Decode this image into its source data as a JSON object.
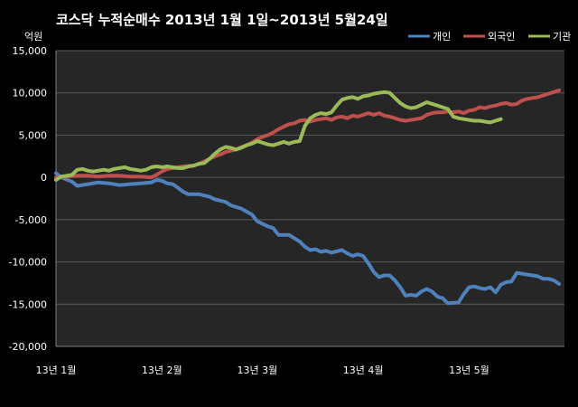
{
  "chart_data": {
    "type": "line",
    "title": "코스닥 누적순매수 2013년 1월 1일~2013년 5월24일",
    "unit_label": "억원",
    "ylim": [
      -20000,
      15000
    ],
    "yticks": [
      -20000,
      -15000,
      -10000,
      -5000,
      0,
      5000,
      10000,
      15000
    ],
    "ytick_labels": [
      "-20,000",
      "-15,000",
      "-10,000",
      "-5,000",
      "0",
      "5,000",
      "10,000",
      "15,000"
    ],
    "xlim": [
      0,
      96
    ],
    "xticks": [
      {
        "x": 0,
        "label": "13년 1월"
      },
      {
        "x": 20,
        "label": "13년 2월"
      },
      {
        "x": 38,
        "label": "13년 3월"
      },
      {
        "x": 58,
        "label": "13년 4월"
      },
      {
        "x": 78,
        "label": "13년 5월"
      }
    ],
    "grid": true,
    "legend_position": "top-right",
    "series": [
      {
        "name": "개인",
        "color": "#4F81BD",
        "points": [
          [
            0,
            500
          ],
          [
            1,
            0
          ],
          [
            3,
            -500
          ],
          [
            4,
            -1000
          ],
          [
            6,
            -800
          ],
          [
            8,
            -600
          ],
          [
            10,
            -700
          ],
          [
            12,
            -900
          ],
          [
            14,
            -800
          ],
          [
            16,
            -700
          ],
          [
            18,
            -600
          ],
          [
            19,
            -300
          ],
          [
            20,
            -400
          ],
          [
            21,
            -700
          ],
          [
            22,
            -800
          ],
          [
            23,
            -1200
          ],
          [
            24,
            -1700
          ],
          [
            25,
            -2000
          ],
          [
            27,
            -2000
          ],
          [
            29,
            -2300
          ],
          [
            30,
            -2600
          ],
          [
            32,
            -2900
          ],
          [
            33,
            -3300
          ],
          [
            35,
            -3700
          ],
          [
            37,
            -4400
          ],
          [
            38,
            -5200
          ],
          [
            40,
            -5800
          ],
          [
            41,
            -6000
          ],
          [
            42,
            -6800
          ],
          [
            44,
            -6800
          ],
          [
            45,
            -7200
          ],
          [
            46,
            -7600
          ],
          [
            47,
            -8200
          ],
          [
            48,
            -8600
          ],
          [
            49,
            -8500
          ],
          [
            50,
            -8800
          ],
          [
            51,
            -8700
          ],
          [
            52,
            -8900
          ],
          [
            54,
            -8600
          ],
          [
            55,
            -9000
          ],
          [
            56,
            -9300
          ],
          [
            57,
            -9100
          ],
          [
            58,
            -9300
          ],
          [
            59,
            -10200
          ],
          [
            60,
            -11200
          ],
          [
            61,
            -11800
          ],
          [
            62,
            -11600
          ],
          [
            63,
            -11600
          ],
          [
            64,
            -12200
          ],
          [
            65,
            -13000
          ],
          [
            66,
            -14000
          ],
          [
            67,
            -13900
          ],
          [
            68,
            -14000
          ],
          [
            69,
            -13500
          ],
          [
            70,
            -13200
          ],
          [
            71,
            -13500
          ],
          [
            72,
            -14100
          ],
          [
            73,
            -14300
          ],
          [
            74,
            -14900
          ],
          [
            76,
            -14800
          ],
          [
            77,
            -13800
          ],
          [
            78,
            -13000
          ],
          [
            79,
            -12900
          ],
          [
            80,
            -13100
          ],
          [
            81,
            -13200
          ],
          [
            82,
            -13000
          ],
          [
            83,
            -13600
          ],
          [
            84,
            -12700
          ],
          [
            85,
            -12400
          ],
          [
            86,
            -12300
          ],
          [
            87,
            -11300
          ],
          [
            88,
            -11400
          ],
          [
            89,
            -11500
          ],
          [
            90,
            -11600
          ],
          [
            91,
            -11700
          ],
          [
            92,
            -12000
          ],
          [
            93,
            -12000
          ],
          [
            94,
            -12200
          ],
          [
            95,
            -12600
          ]
        ]
      },
      {
        "name": "외국인",
        "color": "#C0504D",
        "points": [
          [
            0,
            0
          ],
          [
            2,
            100
          ],
          [
            4,
            200
          ],
          [
            6,
            200
          ],
          [
            8,
            100
          ],
          [
            10,
            200
          ],
          [
            12,
            200
          ],
          [
            14,
            100
          ],
          [
            16,
            100
          ],
          [
            18,
            0
          ],
          [
            19,
            300
          ],
          [
            20,
            700
          ],
          [
            21,
            1000
          ],
          [
            22,
            1100
          ],
          [
            24,
            1300
          ],
          [
            26,
            1400
          ],
          [
            27,
            1600
          ],
          [
            28,
            1900
          ],
          [
            29,
            2200
          ],
          [
            30,
            2500
          ],
          [
            31,
            2700
          ],
          [
            32,
            3000
          ],
          [
            34,
            3300
          ],
          [
            35,
            3600
          ],
          [
            36,
            3800
          ],
          [
            37,
            4100
          ],
          [
            38,
            4500
          ],
          [
            39,
            4800
          ],
          [
            40,
            5000
          ],
          [
            41,
            5300
          ],
          [
            42,
            5700
          ],
          [
            43,
            6000
          ],
          [
            44,
            6300
          ],
          [
            45,
            6400
          ],
          [
            46,
            6700
          ],
          [
            47,
            6800
          ],
          [
            48,
            6600
          ],
          [
            49,
            6800
          ],
          [
            50,
            6900
          ],
          [
            51,
            7000
          ],
          [
            52,
            6800
          ],
          [
            53,
            7100
          ],
          [
            54,
            7200
          ],
          [
            55,
            7000
          ],
          [
            56,
            7300
          ],
          [
            57,
            7200
          ],
          [
            58,
            7400
          ],
          [
            59,
            7600
          ],
          [
            60,
            7400
          ],
          [
            61,
            7600
          ],
          [
            62,
            7300
          ],
          [
            63,
            7200
          ],
          [
            64,
            7000
          ],
          [
            65,
            6800
          ],
          [
            66,
            6700
          ],
          [
            67,
            6800
          ],
          [
            68,
            6900
          ],
          [
            69,
            7000
          ],
          [
            70,
            7400
          ],
          [
            71,
            7600
          ],
          [
            72,
            7700
          ],
          [
            73,
            7700
          ],
          [
            74,
            7800
          ],
          [
            75,
            7700
          ],
          [
            76,
            7800
          ],
          [
            77,
            7600
          ],
          [
            78,
            7900
          ],
          [
            79,
            8000
          ],
          [
            80,
            8300
          ],
          [
            81,
            8200
          ],
          [
            82,
            8400
          ],
          [
            83,
            8500
          ],
          [
            84,
            8700
          ],
          [
            85,
            8800
          ],
          [
            86,
            8600
          ],
          [
            87,
            8700
          ],
          [
            88,
            9100
          ],
          [
            89,
            9300
          ],
          [
            90,
            9400
          ],
          [
            91,
            9500
          ],
          [
            92,
            9700
          ],
          [
            93,
            9900
          ],
          [
            94,
            10100
          ],
          [
            95,
            10300
          ]
        ]
      },
      {
        "name": "기관",
        "color": "#9BBB59",
        "points": [
          [
            0,
            -300
          ],
          [
            1,
            100
          ],
          [
            2,
            200
          ],
          [
            3,
            300
          ],
          [
            4,
            900
          ],
          [
            5,
            1000
          ],
          [
            6,
            800
          ],
          [
            7,
            700
          ],
          [
            8,
            800
          ],
          [
            9,
            900
          ],
          [
            10,
            800
          ],
          [
            11,
            1000
          ],
          [
            12,
            1100
          ],
          [
            13,
            1200
          ],
          [
            14,
            1000
          ],
          [
            15,
            900
          ],
          [
            16,
            800
          ],
          [
            17,
            900
          ],
          [
            18,
            1200
          ],
          [
            19,
            1300
          ],
          [
            20,
            1200
          ],
          [
            21,
            1300
          ],
          [
            22,
            1200
          ],
          [
            23,
            1100
          ],
          [
            24,
            1100
          ],
          [
            25,
            1300
          ],
          [
            26,
            1400
          ],
          [
            27,
            1600
          ],
          [
            28,
            1700
          ],
          [
            29,
            2200
          ],
          [
            30,
            2800
          ],
          [
            31,
            3300
          ],
          [
            32,
            3600
          ],
          [
            33,
            3500
          ],
          [
            34,
            3300
          ],
          [
            35,
            3500
          ],
          [
            36,
            3800
          ],
          [
            37,
            4000
          ],
          [
            38,
            4300
          ],
          [
            39,
            4100
          ],
          [
            40,
            3900
          ],
          [
            41,
            3800
          ],
          [
            42,
            4000
          ],
          [
            43,
            4200
          ],
          [
            44,
            4000
          ],
          [
            45,
            4200
          ],
          [
            46,
            4300
          ],
          [
            47,
            6100
          ],
          [
            48,
            7000
          ],
          [
            49,
            7400
          ],
          [
            50,
            7600
          ],
          [
            51,
            7500
          ],
          [
            52,
            7700
          ],
          [
            53,
            8500
          ],
          [
            54,
            9200
          ],
          [
            55,
            9400
          ],
          [
            56,
            9500
          ],
          [
            57,
            9300
          ],
          [
            58,
            9600
          ],
          [
            59,
            9700
          ],
          [
            60,
            9900
          ],
          [
            61,
            10000
          ],
          [
            62,
            10100
          ],
          [
            63,
            10000
          ],
          [
            64,
            9400
          ],
          [
            65,
            8800
          ],
          [
            66,
            8400
          ],
          [
            67,
            8200
          ],
          [
            68,
            8300
          ],
          [
            69,
            8600
          ],
          [
            70,
            8900
          ],
          [
            71,
            8700
          ],
          [
            72,
            8500
          ],
          [
            73,
            8300
          ],
          [
            74,
            8100
          ],
          [
            75,
            7200
          ],
          [
            76,
            7000
          ],
          [
            77,
            6900
          ],
          [
            78,
            6800
          ],
          [
            79,
            6700
          ],
          [
            80,
            6700
          ],
          [
            81,
            6600
          ],
          [
            82,
            6500
          ],
          [
            83,
            6700
          ],
          [
            84,
            6900
          ]
        ]
      }
    ]
  }
}
